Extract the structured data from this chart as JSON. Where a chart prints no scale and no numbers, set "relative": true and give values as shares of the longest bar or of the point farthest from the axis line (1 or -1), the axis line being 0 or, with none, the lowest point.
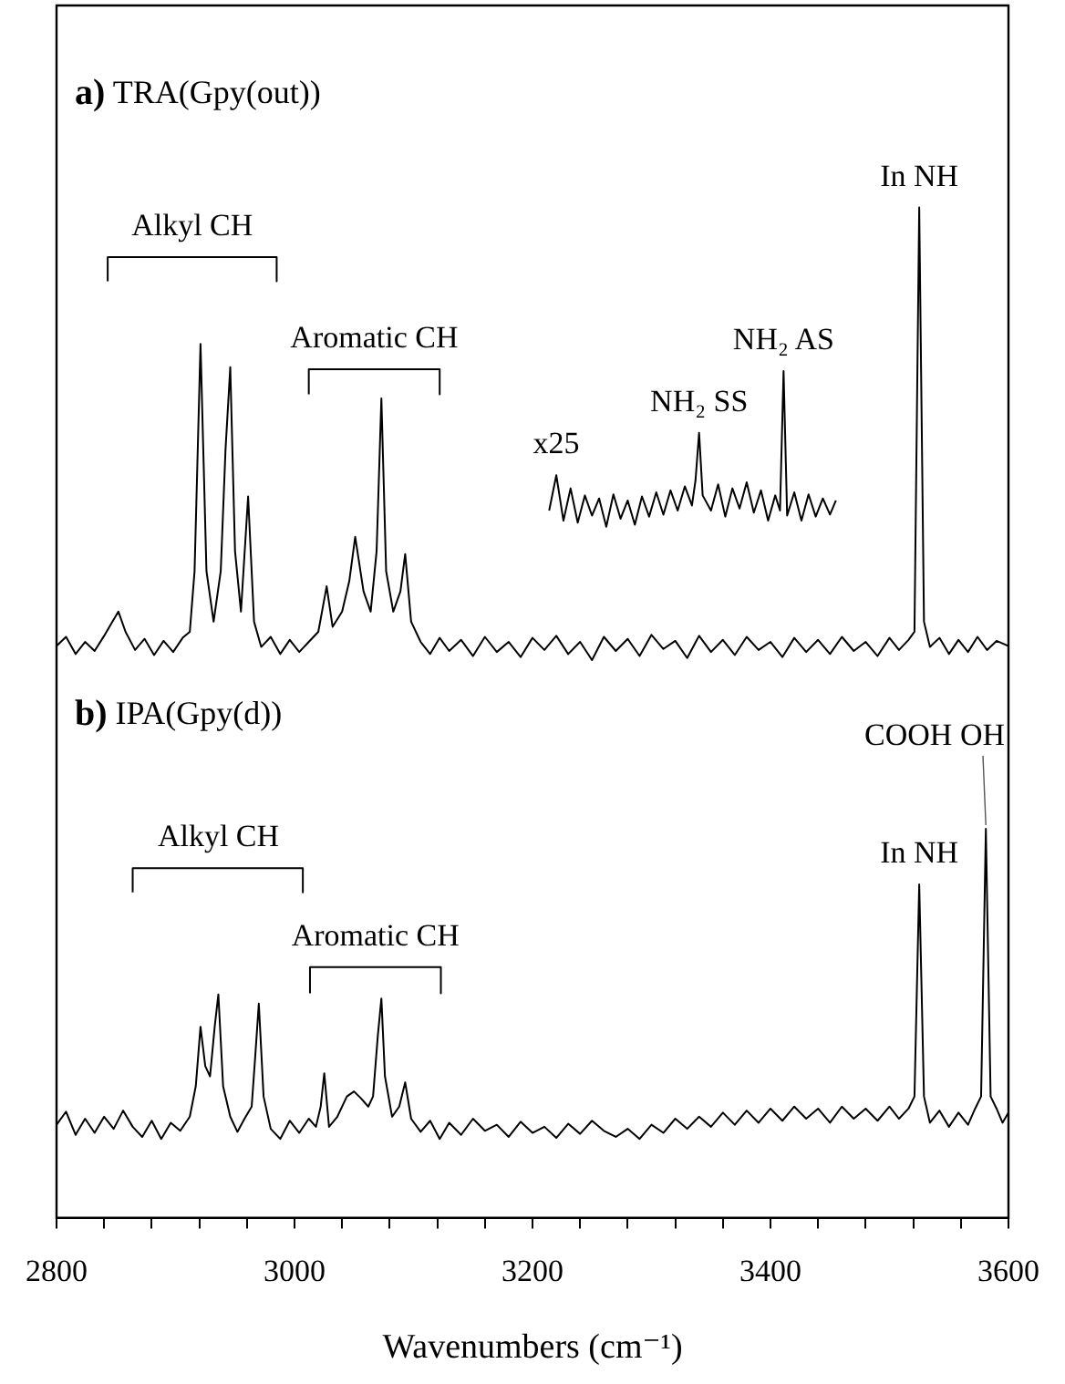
{
  "chart_data": {
    "type": "line",
    "relative": true,
    "xlabel": "Wavenumbers (cm⁻¹)",
    "xlim": [
      2800,
      3600
    ],
    "xticks": [
      2800,
      {
        "value": 2840,
        "label": null
      },
      {
        "value": 2880,
        "label": null
      },
      {
        "value": 2920,
        "label": null
      },
      {
        "value": 2960,
        "label": null
      },
      3000,
      {
        "value": 3040,
        "label": null
      },
      {
        "value": 3080,
        "label": null
      },
      {
        "value": 3120,
        "label": null
      },
      {
        "value": 3160,
        "label": null
      },
      3200,
      {
        "value": 3240,
        "label": null
      },
      {
        "value": 3280,
        "label": null
      },
      {
        "value": 3320,
        "label": null
      },
      {
        "value": 3360,
        "label": null
      },
      3400,
      {
        "value": 3440,
        "label": null
      },
      {
        "value": 3480,
        "label": null
      },
      {
        "value": 3520,
        "label": null
      },
      {
        "value": 3560,
        "label": null
      },
      3600
    ],
    "tick_labels": "x",
    "grid": false,
    "legend": false,
    "annotations": [
      "a) TRA(Gpy(out))",
      "b) IPA(Gpy(d))",
      {
        "text": "Alkyl CH",
        "x": 2914,
        "y": 0.951
      },
      {
        "text": "Aromatic CH",
        "x": 3067,
        "y": 0.84
      },
      {
        "text": "x25",
        "x": 3220,
        "y": 0.735
      },
      {
        "text": "NH₂ SS",
        "x": 3340,
        "y": 0.777
      },
      {
        "text": "NH₂ AS",
        "x": 3411,
        "y": 0.838
      },
      {
        "text": "In NH",
        "x": 3525,
        "y": 1
      },
      {
        "text": "Alkyl CH",
        "x": 2936,
        "y": 0.346
      },
      {
        "text": "Aromatic CH",
        "x": 3068,
        "y": 0.248
      },
      {
        "text": "In NH",
        "x": 3525,
        "y": 0.33
      },
      {
        "text": "COOH OH",
        "x": 3581,
        "y": 0.385
      }
    ],
    "series": [
      {
        "color": "#000000",
        "x": [
          2800,
          2808,
          2816,
          2824,
          2832,
          2840,
          2846,
          2852,
          2858,
          2866,
          2874,
          2882,
          2890,
          2898,
          2906,
          2912,
          2916,
          2921,
          2926,
          2932,
          2938,
          2942,
          2946,
          2950,
          2955,
          2961,
          2966,
          2972,
          2980,
          2988,
          2996,
          3004,
          3012,
          3020,
          3027,
          3032,
          3040,
          3046,
          3051,
          3058,
          3064,
          3069,
          3073,
          3077,
          3083,
          3089,
          3093,
          3098,
          3106,
          3114,
          3122,
          3130,
          3140,
          3150,
          3160,
          3170,
          3180,
          3190,
          3200,
          3210,
          3220,
          3230,
          3240,
          3250,
          3260,
          3270,
          3280,
          3290,
          3300,
          3310,
          3320,
          3330,
          3340,
          3350,
          3360,
          3370,
          3380,
          3390,
          3400,
          3410,
          3420,
          3430,
          3440,
          3450,
          3460,
          3470,
          3480,
          3490,
          3500,
          3508,
          3516,
          3521,
          3525,
          3529,
          3534,
          3542,
          3550,
          3558,
          3566,
          3574,
          3582,
          3590,
          3600
        ],
        "values": [
          0.566,
          0.575,
          0.558,
          0.57,
          0.561,
          0.576,
          0.588,
          0.6,
          0.58,
          0.562,
          0.573,
          0.557,
          0.571,
          0.56,
          0.574,
          0.58,
          0.64,
          0.865,
          0.64,
          0.59,
          0.64,
          0.76,
          0.842,
          0.66,
          0.6,
          0.714,
          0.59,
          0.565,
          0.575,
          0.558,
          0.572,
          0.56,
          0.57,
          0.58,
          0.625,
          0.585,
          0.6,
          0.63,
          0.674,
          0.62,
          0.6,
          0.66,
          0.811,
          0.64,
          0.6,
          0.62,
          0.657,
          0.59,
          0.57,
          0.558,
          0.574,
          0.561,
          0.572,
          0.556,
          0.575,
          0.56,
          0.57,
          0.555,
          0.574,
          0.562,
          0.576,
          0.558,
          0.57,
          0.552,
          0.575,
          0.561,
          0.573,
          0.556,
          0.577,
          0.563,
          0.571,
          0.554,
          0.576,
          0.56,
          0.572,
          0.557,
          0.575,
          0.562,
          0.57,
          0.555,
          0.574,
          0.56,
          0.572,
          0.558,
          0.575,
          0.561,
          0.57,
          0.556,
          0.574,
          0.562,
          0.572,
          0.58,
          1,
          0.59,
          0.565,
          0.574,
          0.558,
          0.572,
          0.56,
          0.575,
          0.562,
          0.571,
          0.566
        ]
      },
      {
        "color": "#000000",
        "x": [
          3214,
          3220,
          3226,
          3232,
          3238,
          3244,
          3250,
          3256,
          3262,
          3268,
          3274,
          3280,
          3286,
          3292,
          3298,
          3304,
          3310,
          3316,
          3322,
          3328,
          3334,
          3337,
          3340,
          3343,
          3350,
          3356,
          3362,
          3368,
          3374,
          3380,
          3386,
          3392,
          3398,
          3404,
          3408,
          3411,
          3414,
          3420,
          3426,
          3432,
          3438,
          3444,
          3450,
          3455
        ],
        "values": [
          0.7,
          0.735,
          0.69,
          0.722,
          0.688,
          0.715,
          0.695,
          0.712,
          0.684,
          0.716,
          0.692,
          0.71,
          0.686,
          0.714,
          0.694,
          0.718,
          0.696,
          0.72,
          0.7,
          0.724,
          0.705,
          0.73,
          0.777,
          0.715,
          0.7,
          0.726,
          0.694,
          0.722,
          0.702,
          0.728,
          0.698,
          0.72,
          0.69,
          0.715,
          0.7,
          0.838,
          0.695,
          0.718,
          0.69,
          0.716,
          0.694,
          0.712,
          0.696,
          0.71
        ]
      },
      {
        "color": "#000000",
        "x": [
          2800,
          2808,
          2816,
          2824,
          2832,
          2840,
          2848,
          2856,
          2864,
          2872,
          2880,
          2888,
          2896,
          2904,
          2912,
          2917,
          2921,
          2925,
          2929,
          2933,
          2936,
          2940,
          2946,
          2952,
          2958,
          2964,
          2967,
          2970,
          2974,
          2980,
          2988,
          2996,
          3004,
          3012,
          3018,
          3022,
          3025,
          3029,
          3036,
          3044,
          3050,
          3056,
          3062,
          3066,
          3070,
          3073,
          3076,
          3082,
          3088,
          3093,
          3098,
          3106,
          3114,
          3122,
          3130,
          3140,
          3150,
          3160,
          3170,
          3180,
          3190,
          3200,
          3210,
          3220,
          3230,
          3240,
          3250,
          3260,
          3270,
          3280,
          3290,
          3300,
          3310,
          3320,
          3330,
          3340,
          3350,
          3360,
          3370,
          3380,
          3390,
          3400,
          3410,
          3420,
          3430,
          3440,
          3450,
          3460,
          3470,
          3480,
          3490,
          3500,
          3508,
          3516,
          3521,
          3525,
          3529,
          3534,
          3542,
          3550,
          3558,
          3566,
          3572,
          3577,
          3581,
          3585,
          3590,
          3595,
          3600
        ],
        "values": [
          0.092,
          0.105,
          0.082,
          0.098,
          0.084,
          0.1,
          0.088,
          0.106,
          0.09,
          0.08,
          0.096,
          0.078,
          0.094,
          0.086,
          0.1,
          0.13,
          0.189,
          0.15,
          0.14,
          0.19,
          0.221,
          0.13,
          0.1,
          0.085,
          0.098,
          0.11,
          0.16,
          0.212,
          0.12,
          0.088,
          0.078,
          0.096,
          0.084,
          0.098,
          0.09,
          0.11,
          0.143,
          0.09,
          0.1,
          0.12,
          0.125,
          0.118,
          0.11,
          0.12,
          0.18,
          0.217,
          0.14,
          0.1,
          0.11,
          0.134,
          0.098,
          0.085,
          0.096,
          0.078,
          0.094,
          0.082,
          0.098,
          0.086,
          0.092,
          0.08,
          0.095,
          0.084,
          0.09,
          0.079,
          0.093,
          0.083,
          0.096,
          0.086,
          0.08,
          0.088,
          0.078,
          0.092,
          0.084,
          0.098,
          0.088,
          0.1,
          0.09,
          0.104,
          0.092,
          0.106,
          0.094,
          0.108,
          0.096,
          0.11,
          0.098,
          0.108,
          0.094,
          0.11,
          0.098,
          0.108,
          0.096,
          0.11,
          0.098,
          0.108,
          0.12,
          0.33,
          0.12,
          0.094,
          0.106,
          0.09,
          0.104,
          0.092,
          0.108,
          0.12,
          0.385,
          0.12,
          0.108,
          0.094,
          0.104
        ]
      },
      {
        "color": "#000000",
        "x": [
          2843,
          2843,
          2914,
          2985,
          2985
        ],
        "values": [
          0.927,
          0.951,
          0.951,
          0.951,
          0.927
        ]
      },
      {
        "color": "#000000",
        "x": [
          3012,
          3012,
          3067,
          3122,
          3122
        ],
        "values": [
          0.815,
          0.84,
          0.84,
          0.84,
          0.815
        ]
      },
      {
        "color": "#000000",
        "x": [
          2864,
          2864,
          2936,
          3007,
          3007
        ],
        "values": [
          0.322,
          0.346,
          0.346,
          0.346,
          0.322
        ]
      },
      {
        "color": "#000000",
        "x": [
          3013,
          3013,
          3068,
          3123,
          3123
        ],
        "values": [
          0.222,
          0.248,
          0.248,
          0.248,
          0.222
        ]
      }
    ]
  }
}
